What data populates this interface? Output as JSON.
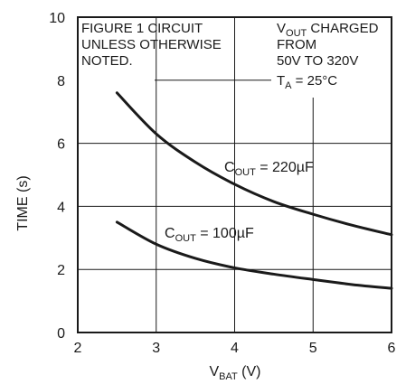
{
  "chart_data": {
    "type": "line",
    "xlabel": {
      "main": "V",
      "sub": "BAT",
      "suffix": " (V)"
    },
    "ylabel": "TIME (s)",
    "xlim": [
      2,
      6
    ],
    "ylim": [
      0,
      10
    ],
    "xticks": [
      "2",
      "3",
      "4",
      "5",
      "6"
    ],
    "yticks": [
      "0",
      "2",
      "4",
      "6",
      "8",
      "10"
    ],
    "grid": true,
    "series": [
      {
        "name": "COUT = 220µF",
        "label": {
          "main": "C",
          "sub": "OUT",
          "suffix": " = 220µF"
        },
        "color": "#1a1a1a",
        "x": [
          2.5,
          3.0,
          3.5,
          4.0,
          4.5,
          5.0,
          5.5,
          6.0
        ],
        "y": [
          7.6,
          6.3,
          5.4,
          4.7,
          4.15,
          3.75,
          3.4,
          3.1
        ]
      },
      {
        "name": "COUT = 100µF",
        "label": {
          "main": "C",
          "sub": "OUT",
          "suffix": " = 100µF"
        },
        "color": "#1a1a1a",
        "x": [
          2.5,
          3.0,
          3.5,
          4.0,
          4.5,
          5.0,
          5.5,
          6.0
        ],
        "y": [
          3.5,
          2.8,
          2.35,
          2.05,
          1.85,
          1.68,
          1.52,
          1.4
        ]
      }
    ],
    "notes": {
      "left": [
        "FIGURE 1 CIRCUIT",
        "UNLESS OTHERWISE",
        "NOTED."
      ],
      "right": {
        "line1": {
          "main": "V",
          "sub": "OUT",
          "suffix": " CHARGED"
        },
        "line2": "FROM",
        "line3": "50V TO 320V",
        "line4": {
          "main": "T",
          "sub": "A",
          "suffix": " = 25°C"
        }
      }
    }
  }
}
